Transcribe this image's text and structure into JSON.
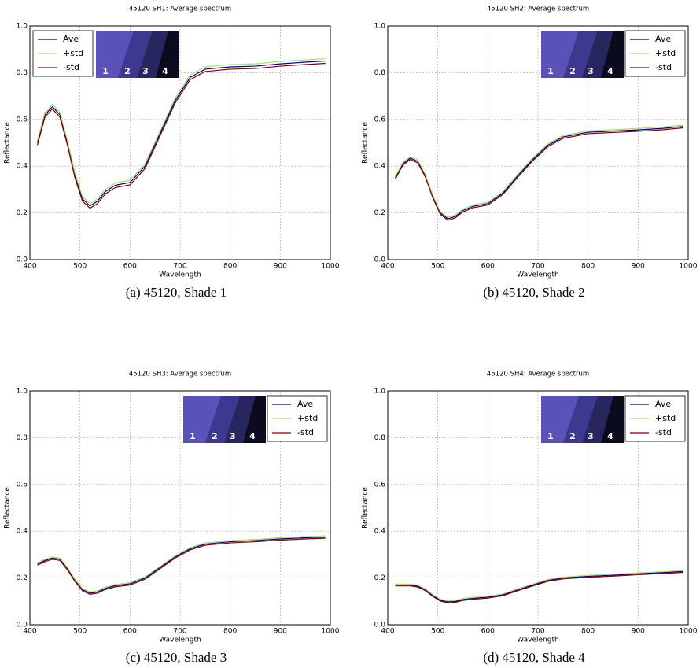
{
  "chart_data": [
    {
      "type": "line",
      "title": "45120 SH1: Average spectrum",
      "xlabel": "Wavelength",
      "ylabel": "Reflectance",
      "caption": "(a) 45120, Shade 1",
      "legend": "upper left",
      "grid": true,
      "inset_labels": [
        "1",
        "2",
        "3",
        "4"
      ],
      "x": [
        415,
        430,
        445,
        460,
        475,
        490,
        505,
        520,
        535,
        550,
        570,
        600,
        630,
        660,
        690,
        720,
        750,
        800,
        850,
        900,
        950,
        990
      ],
      "series": [
        {
          "name": "Ave",
          "color": "#000080",
          "values": [
            0.5,
            0.62,
            0.655,
            0.62,
            0.5,
            0.36,
            0.26,
            0.23,
            0.25,
            0.29,
            0.318,
            0.33,
            0.4,
            0.54,
            0.68,
            0.78,
            0.815,
            0.825,
            0.828,
            0.838,
            0.845,
            0.85
          ]
        },
        {
          "name": "+std",
          "color": "#a8e070",
          "values": [
            0.51,
            0.63,
            0.665,
            0.63,
            0.51,
            0.37,
            0.27,
            0.24,
            0.26,
            0.3,
            0.328,
            0.34,
            0.41,
            0.55,
            0.69,
            0.79,
            0.825,
            0.835,
            0.838,
            0.848,
            0.855,
            0.86
          ]
        },
        {
          "name": "-std",
          "color": "#800000",
          "values": [
            0.49,
            0.61,
            0.645,
            0.61,
            0.49,
            0.35,
            0.25,
            0.22,
            0.24,
            0.28,
            0.308,
            0.32,
            0.39,
            0.53,
            0.67,
            0.77,
            0.805,
            0.815,
            0.818,
            0.828,
            0.835,
            0.84
          ]
        }
      ],
      "xlim": [
        400,
        1000
      ],
      "xticks": [
        400,
        500,
        600,
        700,
        800,
        900,
        1000
      ],
      "ylim": [
        0,
        1
      ],
      "yticks": [
        {
          "value": 0,
          "label": "0.0"
        },
        0.2,
        0.4,
        0.6,
        0.8,
        {
          "value": 1,
          "label": "1.0"
        }
      ]
    },
    {
      "type": "line",
      "title": "45120 SH2: Average spectrum",
      "xlabel": "Wavelength",
      "ylabel": "Reflectance",
      "caption": "(b) 45120, Shade 2",
      "legend": "upper right",
      "grid": true,
      "inset_labels": [
        "1",
        "2",
        "3",
        "4"
      ],
      "x": [
        415,
        430,
        445,
        460,
        475,
        490,
        505,
        520,
        535,
        550,
        570,
        600,
        630,
        660,
        690,
        720,
        750,
        800,
        850,
        900,
        950,
        990
      ],
      "series": [
        {
          "name": "Ave",
          "color": "#000080",
          "values": [
            0.35,
            0.41,
            0.435,
            0.42,
            0.36,
            0.27,
            0.2,
            0.175,
            0.185,
            0.21,
            0.228,
            0.24,
            0.285,
            0.36,
            0.43,
            0.49,
            0.525,
            0.545,
            0.55,
            0.555,
            0.562,
            0.57
          ]
        },
        {
          "name": "+std",
          "color": "#a8e070",
          "values": [
            0.356,
            0.416,
            0.441,
            0.426,
            0.366,
            0.276,
            0.206,
            0.181,
            0.191,
            0.216,
            0.234,
            0.246,
            0.291,
            0.366,
            0.436,
            0.496,
            0.531,
            0.551,
            0.556,
            0.561,
            0.568,
            0.576
          ]
        },
        {
          "name": "-std",
          "color": "#800000",
          "values": [
            0.344,
            0.404,
            0.429,
            0.414,
            0.354,
            0.264,
            0.194,
            0.169,
            0.179,
            0.204,
            0.222,
            0.234,
            0.279,
            0.354,
            0.424,
            0.484,
            0.519,
            0.539,
            0.544,
            0.549,
            0.556,
            0.564
          ]
        }
      ],
      "xlim": [
        400,
        1000
      ],
      "xticks": [
        400,
        500,
        600,
        700,
        800,
        900,
        1000
      ],
      "ylim": [
        0,
        1
      ],
      "yticks": [
        {
          "value": 0,
          "label": "0.0"
        },
        0.2,
        0.4,
        0.6,
        0.8,
        {
          "value": 1,
          "label": "1.0"
        }
      ]
    },
    {
      "type": "line",
      "title": "45120 SH3: Average spectrum",
      "xlabel": "Wavelength",
      "ylabel": "Reflectance",
      "caption": "(c) 45120, Shade 3",
      "legend": "upper right",
      "grid": true,
      "inset_labels": [
        "1",
        "2",
        "3",
        "4"
      ],
      "x": [
        415,
        430,
        445,
        460,
        475,
        490,
        505,
        520,
        535,
        550,
        570,
        600,
        630,
        660,
        690,
        720,
        750,
        800,
        850,
        900,
        950,
        990
      ],
      "series": [
        {
          "name": "Ave",
          "color": "#000080",
          "values": [
            0.26,
            0.275,
            0.285,
            0.28,
            0.24,
            0.19,
            0.15,
            0.135,
            0.14,
            0.155,
            0.167,
            0.175,
            0.2,
            0.245,
            0.29,
            0.325,
            0.345,
            0.355,
            0.36,
            0.367,
            0.372,
            0.375
          ]
        },
        {
          "name": "+std",
          "color": "#a8e070",
          "values": [
            0.265,
            0.28,
            0.29,
            0.285,
            0.245,
            0.195,
            0.155,
            0.14,
            0.145,
            0.16,
            0.172,
            0.18,
            0.205,
            0.25,
            0.295,
            0.33,
            0.35,
            0.36,
            0.365,
            0.372,
            0.377,
            0.38
          ]
        },
        {
          "name": "-std",
          "color": "#800000",
          "values": [
            0.255,
            0.27,
            0.28,
            0.275,
            0.235,
            0.185,
            0.145,
            0.13,
            0.135,
            0.15,
            0.162,
            0.17,
            0.195,
            0.24,
            0.285,
            0.32,
            0.34,
            0.35,
            0.355,
            0.362,
            0.367,
            0.37
          ]
        }
      ],
      "xlim": [
        400,
        1000
      ],
      "xticks": [
        400,
        500,
        600,
        700,
        800,
        900,
        1000
      ],
      "ylim": [
        0,
        1
      ],
      "yticks": [
        {
          "value": 0,
          "label": "0.0"
        },
        0.2,
        0.4,
        0.6,
        0.8,
        {
          "value": 1,
          "label": "1.0"
        }
      ]
    },
    {
      "type": "line",
      "title": "45120 SH4: Average spectrum",
      "xlabel": "Wavelength",
      "ylabel": "Reflectance",
      "caption": "(d) 45120, Shade 4",
      "legend": "upper right",
      "grid": true,
      "inset_labels": [
        "1",
        "2",
        "3",
        "4"
      ],
      "x": [
        415,
        430,
        445,
        460,
        475,
        490,
        505,
        520,
        535,
        550,
        570,
        600,
        630,
        660,
        690,
        720,
        750,
        800,
        850,
        900,
        950,
        990
      ],
      "series": [
        {
          "name": "Ave",
          "color": "#000080",
          "values": [
            0.17,
            0.17,
            0.17,
            0.165,
            0.15,
            0.125,
            0.105,
            0.098,
            0.1,
            0.108,
            0.113,
            0.118,
            0.128,
            0.15,
            0.17,
            0.19,
            0.2,
            0.207,
            0.212,
            0.218,
            0.223,
            0.228
          ]
        },
        {
          "name": "+std",
          "color": "#a8e070",
          "values": [
            0.174,
            0.174,
            0.174,
            0.169,
            0.154,
            0.129,
            0.109,
            0.102,
            0.104,
            0.112,
            0.117,
            0.122,
            0.132,
            0.154,
            0.174,
            0.194,
            0.204,
            0.211,
            0.216,
            0.222,
            0.227,
            0.232
          ]
        },
        {
          "name": "-std",
          "color": "#800000",
          "values": [
            0.166,
            0.166,
            0.166,
            0.161,
            0.146,
            0.121,
            0.101,
            0.094,
            0.096,
            0.104,
            0.109,
            0.114,
            0.124,
            0.146,
            0.166,
            0.186,
            0.196,
            0.203,
            0.208,
            0.214,
            0.219,
            0.224
          ]
        }
      ],
      "xlim": [
        400,
        1000
      ],
      "xticks": [
        400,
        500,
        600,
        700,
        800,
        900,
        1000
      ],
      "ylim": [
        0,
        1
      ],
      "yticks": [
        {
          "value": 0,
          "label": "0.0"
        },
        0.2,
        0.4,
        0.6,
        0.8,
        {
          "value": 1,
          "label": "1.0"
        }
      ]
    }
  ]
}
